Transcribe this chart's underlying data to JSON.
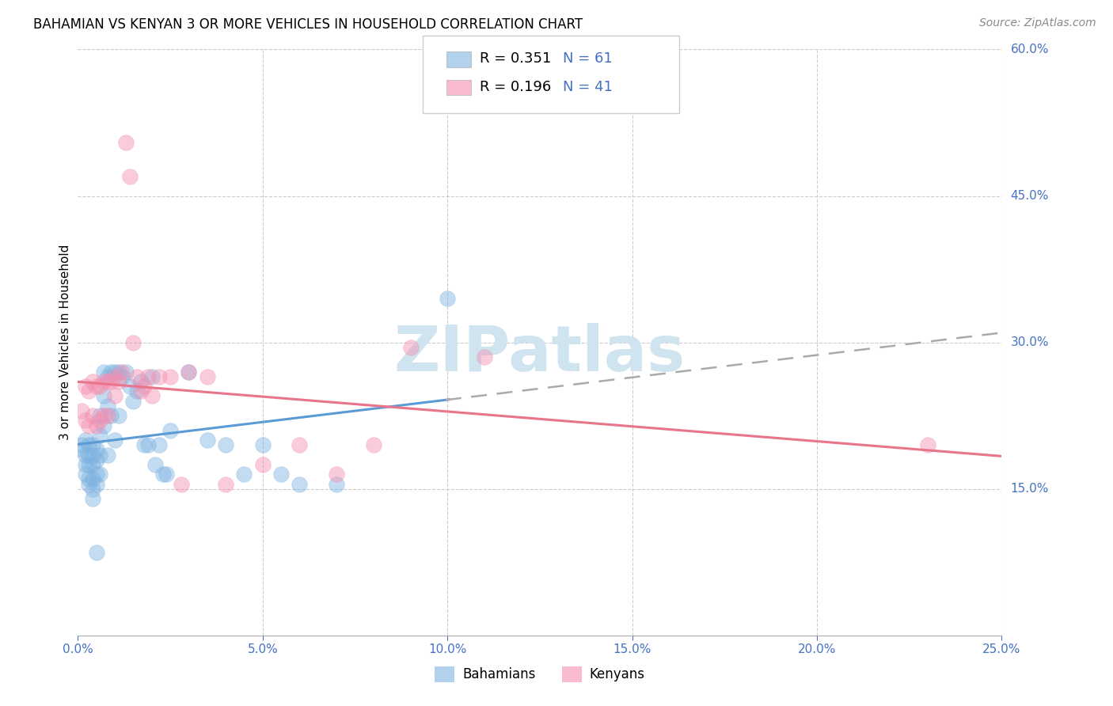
{
  "title": "BAHAMIAN VS KENYAN 3 OR MORE VEHICLES IN HOUSEHOLD CORRELATION CHART",
  "source": "Source: ZipAtlas.com",
  "ylabel": "3 or more Vehicles in Household",
  "xlim": [
    0.0,
    0.25
  ],
  "ylim": [
    0.0,
    0.6
  ],
  "xticks": [
    0.0,
    0.05,
    0.1,
    0.15,
    0.2,
    0.25
  ],
  "yticks": [
    0.0,
    0.15,
    0.3,
    0.45,
    0.6
  ],
  "xtick_labels": [
    "0.0%",
    "5.0%",
    "10.0%",
    "15.0%",
    "20.0%",
    "25.0%"
  ],
  "ytick_labels": [
    "15.0%",
    "30.0%",
    "45.0%",
    "60.0%"
  ],
  "ytick_vals": [
    0.15,
    0.3,
    0.45,
    0.6
  ],
  "bahamian_color": "#7EB3E0",
  "kenyan_color": "#F48FB1",
  "bahamian_R": "0.351",
  "bahamian_N": "61",
  "kenyan_R": "0.196",
  "kenyan_N": "41",
  "watermark": "ZIPatlas",
  "watermark_color": "#D0E4F0",
  "legend_bahamian": "Bahamians",
  "legend_kenyan": "Kenyans",
  "label_color": "#4472C4",
  "bahamian_x": [
    0.001,
    0.001,
    0.002,
    0.002,
    0.002,
    0.002,
    0.003,
    0.003,
    0.003,
    0.003,
    0.003,
    0.004,
    0.004,
    0.004,
    0.004,
    0.004,
    0.004,
    0.005,
    0.005,
    0.005,
    0.005,
    0.005,
    0.006,
    0.006,
    0.006,
    0.006,
    0.007,
    0.007,
    0.007,
    0.008,
    0.008,
    0.008,
    0.009,
    0.009,
    0.01,
    0.01,
    0.011,
    0.011,
    0.012,
    0.013,
    0.014,
    0.015,
    0.016,
    0.017,
    0.018,
    0.019,
    0.02,
    0.021,
    0.022,
    0.023,
    0.024,
    0.025,
    0.03,
    0.035,
    0.04,
    0.045,
    0.05,
    0.055,
    0.06,
    0.07,
    0.1
  ],
  "bahamian_y": [
    0.195,
    0.19,
    0.2,
    0.185,
    0.175,
    0.165,
    0.195,
    0.185,
    0.175,
    0.16,
    0.155,
    0.195,
    0.185,
    0.175,
    0.16,
    0.15,
    0.14,
    0.19,
    0.18,
    0.165,
    0.155,
    0.085,
    0.225,
    0.205,
    0.185,
    0.165,
    0.27,
    0.245,
    0.215,
    0.265,
    0.235,
    0.185,
    0.27,
    0.225,
    0.27,
    0.2,
    0.27,
    0.225,
    0.265,
    0.27,
    0.255,
    0.24,
    0.25,
    0.26,
    0.195,
    0.195,
    0.265,
    0.175,
    0.195,
    0.165,
    0.165,
    0.21,
    0.27,
    0.2,
    0.195,
    0.165,
    0.195,
    0.165,
    0.155,
    0.155,
    0.345
  ],
  "kenyan_x": [
    0.001,
    0.002,
    0.002,
    0.003,
    0.003,
    0.004,
    0.004,
    0.005,
    0.005,
    0.006,
    0.006,
    0.007,
    0.007,
    0.008,
    0.008,
    0.009,
    0.01,
    0.01,
    0.011,
    0.012,
    0.013,
    0.014,
    0.015,
    0.016,
    0.017,
    0.018,
    0.019,
    0.02,
    0.022,
    0.025,
    0.028,
    0.03,
    0.035,
    0.04,
    0.05,
    0.06,
    0.07,
    0.08,
    0.09,
    0.11,
    0.23
  ],
  "kenyan_y": [
    0.23,
    0.255,
    0.22,
    0.25,
    0.215,
    0.26,
    0.225,
    0.255,
    0.215,
    0.255,
    0.22,
    0.26,
    0.225,
    0.26,
    0.225,
    0.26,
    0.245,
    0.265,
    0.26,
    0.27,
    0.505,
    0.47,
    0.3,
    0.265,
    0.25,
    0.255,
    0.265,
    0.245,
    0.265,
    0.265,
    0.155,
    0.27,
    0.265,
    0.155,
    0.175,
    0.195,
    0.165,
    0.195,
    0.295,
    0.285,
    0.195
  ],
  "title_fontsize": 12,
  "axis_label_fontsize": 11,
  "tick_fontsize": 11,
  "source_fontsize": 10
}
